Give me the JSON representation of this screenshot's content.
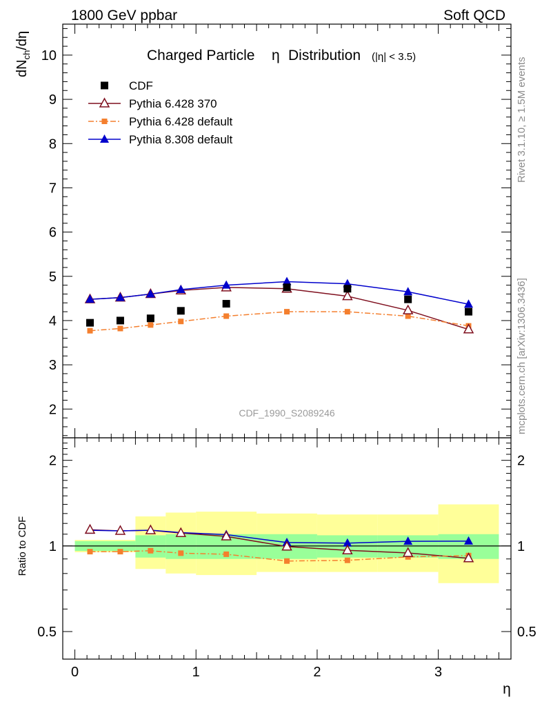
{
  "header": {
    "left": "1800 GeV ppbar",
    "right": "Soft QCD"
  },
  "side_labels": {
    "rivet": "Rivet 3.1.10, ≥ 1.5M events",
    "mcplots": "mcplots.cern.ch [arXiv:1306.3436]"
  },
  "chart_data": [
    {
      "type": "scatter",
      "title": "Charged Particle η Distribution",
      "title_main": "Charged Particle",
      "title_eta": "η",
      "title_rest": "Distribution",
      "title_cut": "(|η| < 3.5)",
      "ylabel": "dN_ch/dη",
      "watermark": "CDF_1990_S2089246",
      "xlim": [
        -0.1,
        3.6
      ],
      "ylim": [
        1.35,
        10.7
      ],
      "yticks": [
        "2",
        "3",
        "4",
        "5",
        "6",
        "7",
        "8",
        "9",
        "10"
      ],
      "legend_position": "top-left",
      "series": [
        {
          "name": "CDF",
          "color": "#000000",
          "marker": "square",
          "x": [
            0.125,
            0.375,
            0.625,
            0.875,
            1.25,
            1.75,
            2.25,
            2.75,
            3.25
          ],
          "y": [
            3.95,
            4.0,
            4.05,
            4.22,
            4.38,
            4.75,
            4.72,
            4.48,
            4.2
          ]
        },
        {
          "name": "Pythia 6.428 370",
          "color": "#7f0f1e",
          "marker": "open-triangle",
          "line": "solid",
          "x": [
            0.125,
            0.375,
            0.625,
            0.875,
            1.25,
            1.75,
            2.25,
            2.75,
            3.25
          ],
          "y": [
            4.48,
            4.52,
            4.6,
            4.68,
            4.75,
            4.72,
            4.55,
            4.23,
            3.8
          ]
        },
        {
          "name": "Pythia 6.428 default",
          "color": "#f47f2e",
          "marker": "small-square",
          "line": "dashdot",
          "x": [
            0.125,
            0.375,
            0.625,
            0.875,
            1.25,
            1.75,
            2.25,
            2.75,
            3.25
          ],
          "y": [
            3.77,
            3.82,
            3.9,
            3.98,
            4.1,
            4.2,
            4.2,
            4.1,
            3.88
          ]
        },
        {
          "name": "Pythia 8.308 default",
          "color": "#0000cc",
          "marker": "triangle",
          "line": "solid",
          "x": [
            0.125,
            0.375,
            0.625,
            0.875,
            1.25,
            1.75,
            2.25,
            2.75,
            3.25
          ],
          "y": [
            4.48,
            4.52,
            4.6,
            4.7,
            4.8,
            4.88,
            4.83,
            4.65,
            4.37
          ]
        }
      ]
    },
    {
      "type": "line",
      "ylabel": "Ratio to CDF",
      "xlabel": "η",
      "xticks": [
        "0",
        "1",
        "2",
        "3"
      ],
      "yticks": [
        "0.5",
        "1",
        "2"
      ],
      "ylim": [
        0.4,
        2.4
      ],
      "scale": "log",
      "uncertainty_bands": {
        "x_edges": [
          0,
          0.5,
          0.75,
          1.0,
          1.5,
          2.0,
          2.5,
          3.0,
          3.5
        ],
        "green_hi": [
          1.04,
          1.09,
          1.1,
          1.1,
          1.1,
          1.09,
          1.09,
          1.1,
          1.19
        ],
        "green_lo": [
          0.96,
          0.91,
          0.9,
          0.9,
          0.9,
          0.91,
          0.91,
          0.9,
          0.88
        ],
        "yellow_hi": [
          1.05,
          1.27,
          1.31,
          1.32,
          1.3,
          1.29,
          1.29,
          1.4,
          1.4
        ],
        "yellow_lo": [
          0.95,
          0.83,
          0.8,
          0.79,
          0.81,
          0.81,
          0.81,
          0.74,
          0.74
        ]
      },
      "series": [
        {
          "name": "Pythia 6.428 370",
          "x": [
            0.125,
            0.375,
            0.625,
            0.875,
            1.25,
            1.75,
            2.25,
            2.75,
            3.25
          ],
          "y": [
            1.14,
            1.13,
            1.135,
            1.11,
            1.08,
            0.995,
            0.965,
            0.945,
            0.905
          ]
        },
        {
          "name": "Pythia 6.428 default",
          "x": [
            0.125,
            0.375,
            0.625,
            0.875,
            1.25,
            1.75,
            2.25,
            2.75,
            3.25
          ],
          "y": [
            0.955,
            0.955,
            0.962,
            0.943,
            0.935,
            0.885,
            0.89,
            0.915,
            0.925
          ]
        },
        {
          "name": "Pythia 8.308 default",
          "x": [
            0.125,
            0.375,
            0.625,
            0.875,
            1.25,
            1.75,
            2.25,
            2.75,
            3.25
          ],
          "y": [
            1.135,
            1.13,
            1.136,
            1.114,
            1.096,
            1.028,
            1.023,
            1.038,
            1.04
          ]
        }
      ]
    }
  ]
}
